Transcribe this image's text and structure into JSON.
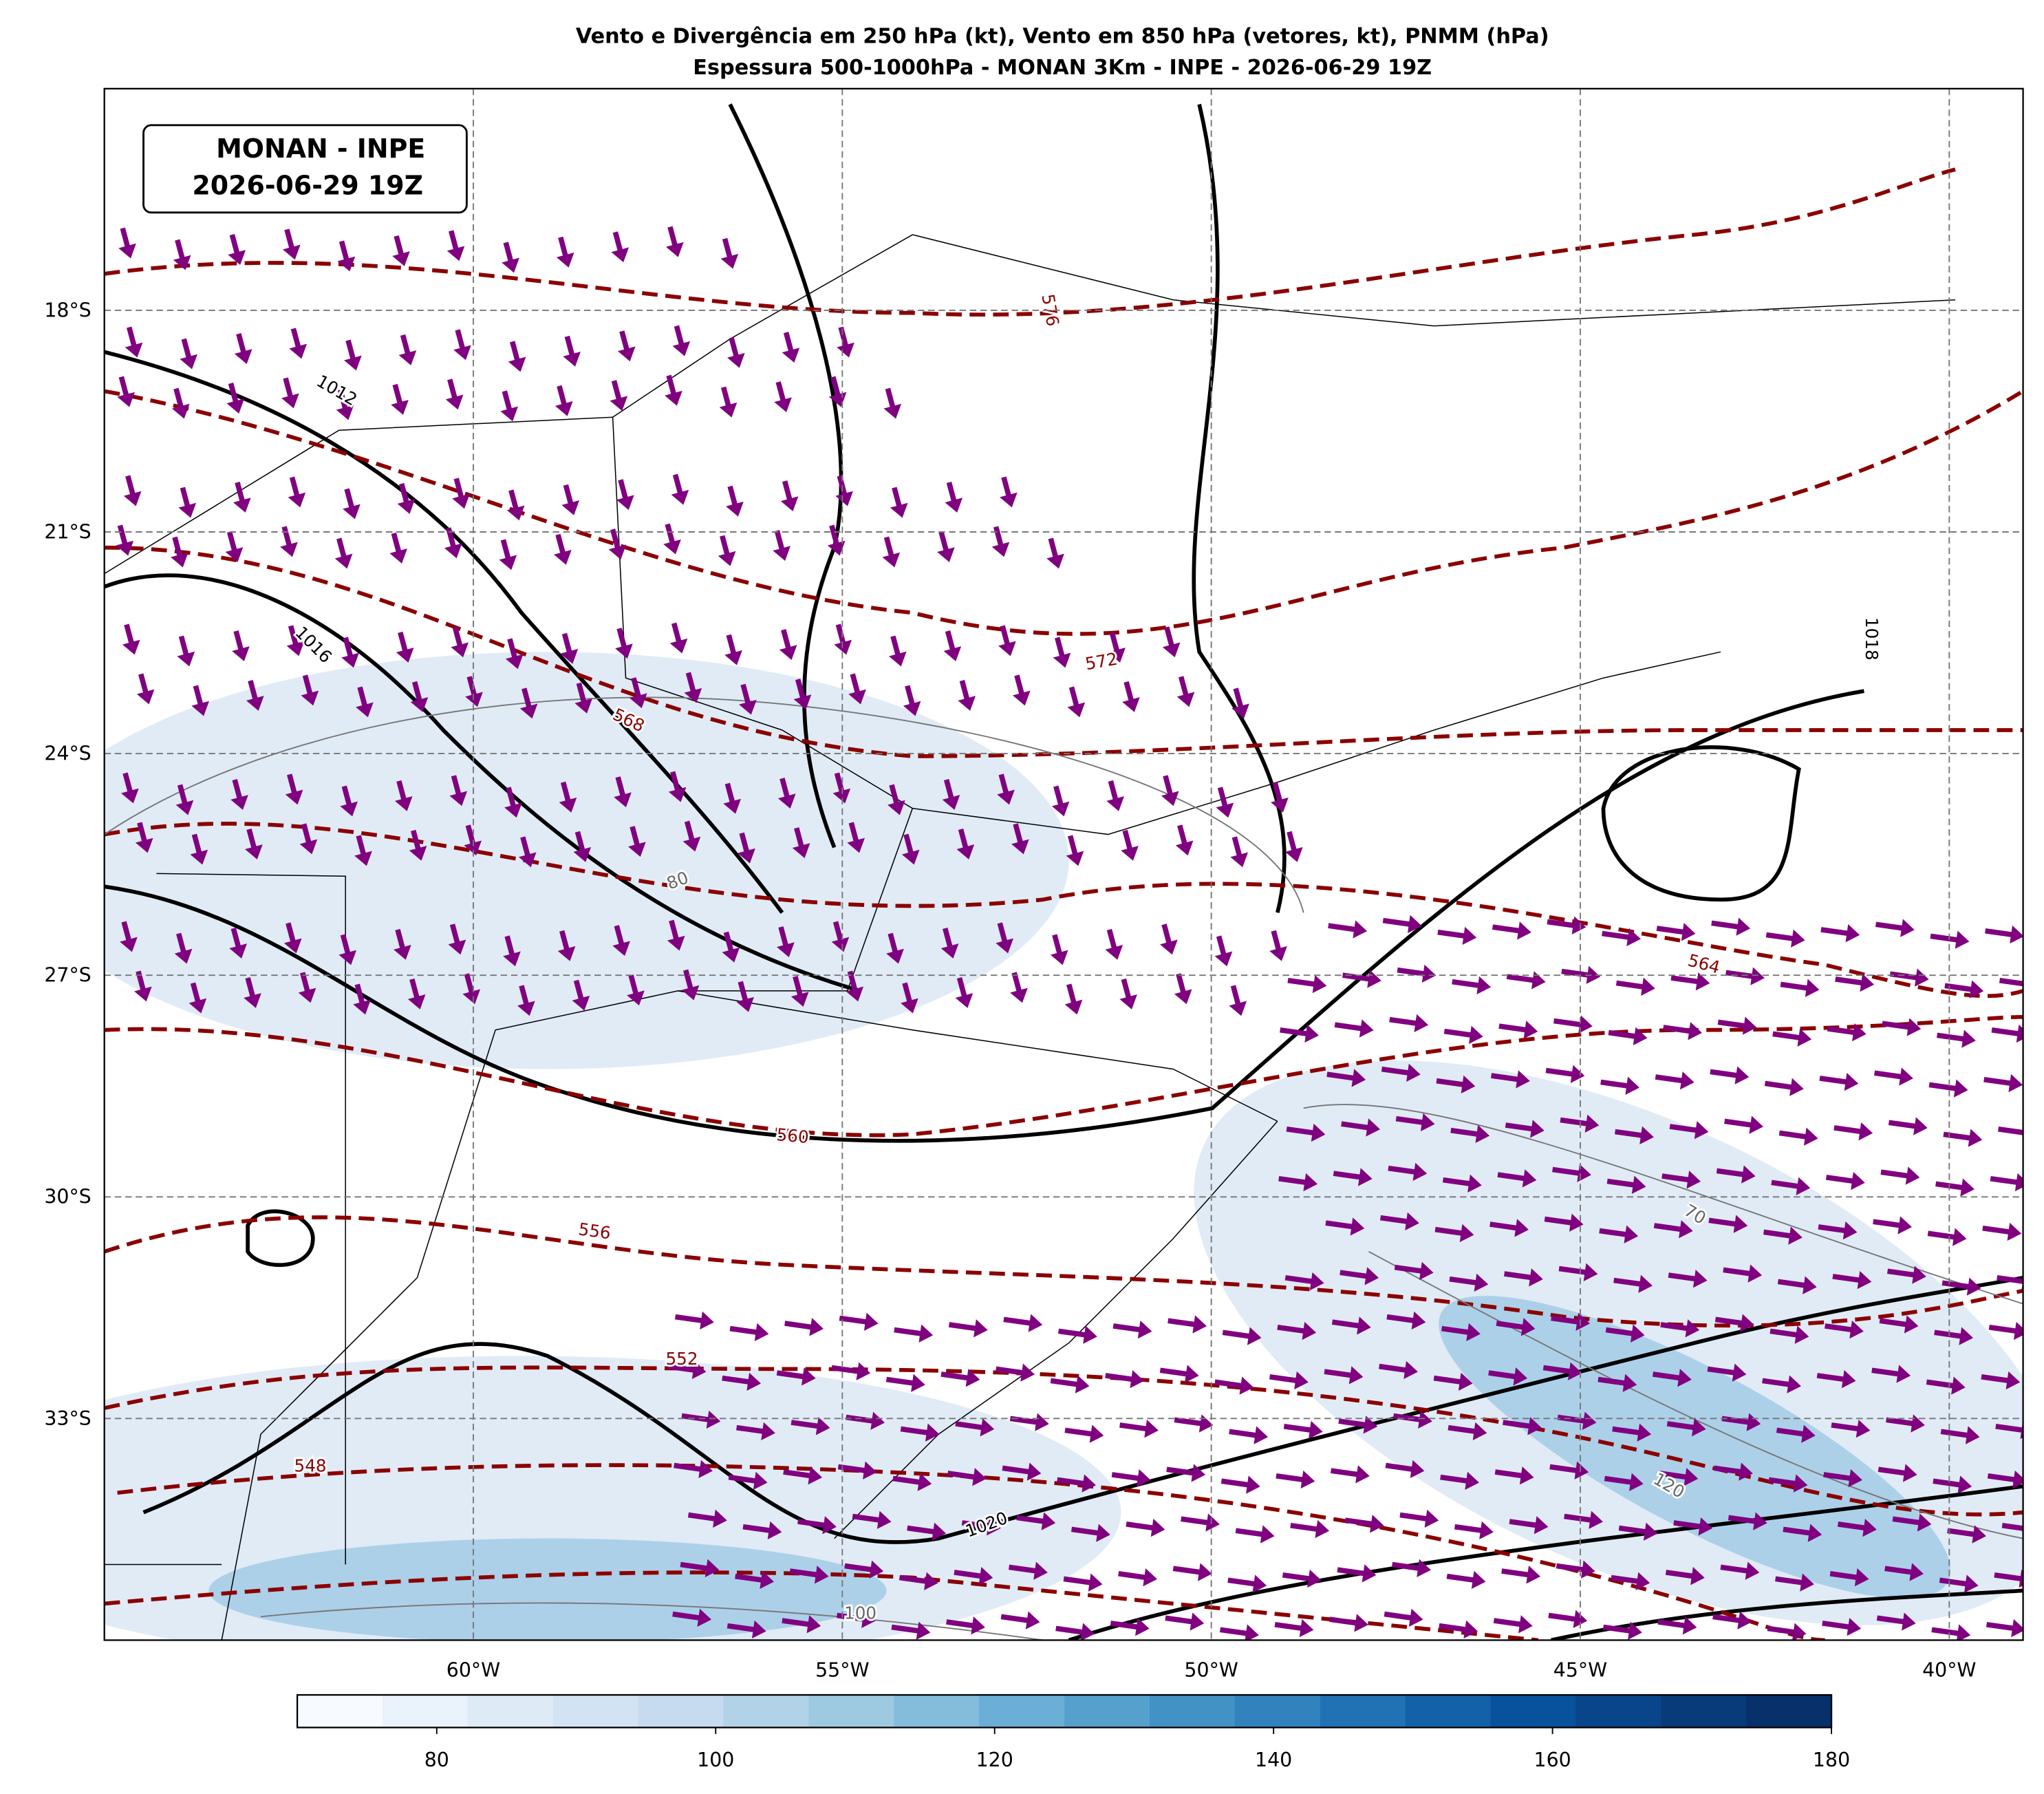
{
  "header": {
    "title_line1": "Vento e Divergência em 250 hPa (kt), Vento em 850 hPa (vetores, kt), PNMM (hPa)",
    "title_line2": "Espessura 500-1000hPa - MONAN 3Km - INPE - 2026-06-29 19Z"
  },
  "info_box": {
    "line1": "MONAN - INPE",
    "line2": "2026-06-29 19Z"
  },
  "map": {
    "xlim": [
      -65,
      -39
    ],
    "ylim": [
      -36,
      -15
    ],
    "xticks": [
      {
        "value": -60,
        "label": "60°W"
      },
      {
        "value": -55,
        "label": "55°W"
      },
      {
        "value": -50,
        "label": "50°W"
      },
      {
        "value": -45,
        "label": "45°W"
      },
      {
        "value": -40,
        "label": "40°W"
      }
    ],
    "yticks": [
      {
        "value": -18,
        "label": "18°S"
      },
      {
        "value": -21,
        "label": "21°S"
      },
      {
        "value": -24,
        "label": "24°S"
      },
      {
        "value": -27,
        "label": "27°S"
      },
      {
        "value": -30,
        "label": "30°S"
      },
      {
        "value": -33,
        "label": "33°S"
      }
    ],
    "grid": true,
    "contour_labels": [
      "1012",
      "1016",
      "1020",
      "1018",
      "576",
      "572",
      "568",
      "564",
      "560",
      "556",
      "552",
      "548",
      "80",
      "70",
      "100",
      "120"
    ]
  },
  "colorbar": {
    "vmin": 70,
    "vmax": 180,
    "ticks": [
      80,
      100,
      120,
      140,
      160,
      180
    ],
    "colors": [
      "#f7fbff",
      "#eaf2fb",
      "#deebf7",
      "#d2e3f3",
      "#c6dbef",
      "#b2d2e8",
      "#9ecae1",
      "#84bcdb",
      "#6baed6",
      "#56a0ce",
      "#4292c6",
      "#3282be",
      "#2171b5",
      "#1361a9",
      "#08519c",
      "#08458a",
      "#083b7a",
      "#08306b"
    ]
  }
}
